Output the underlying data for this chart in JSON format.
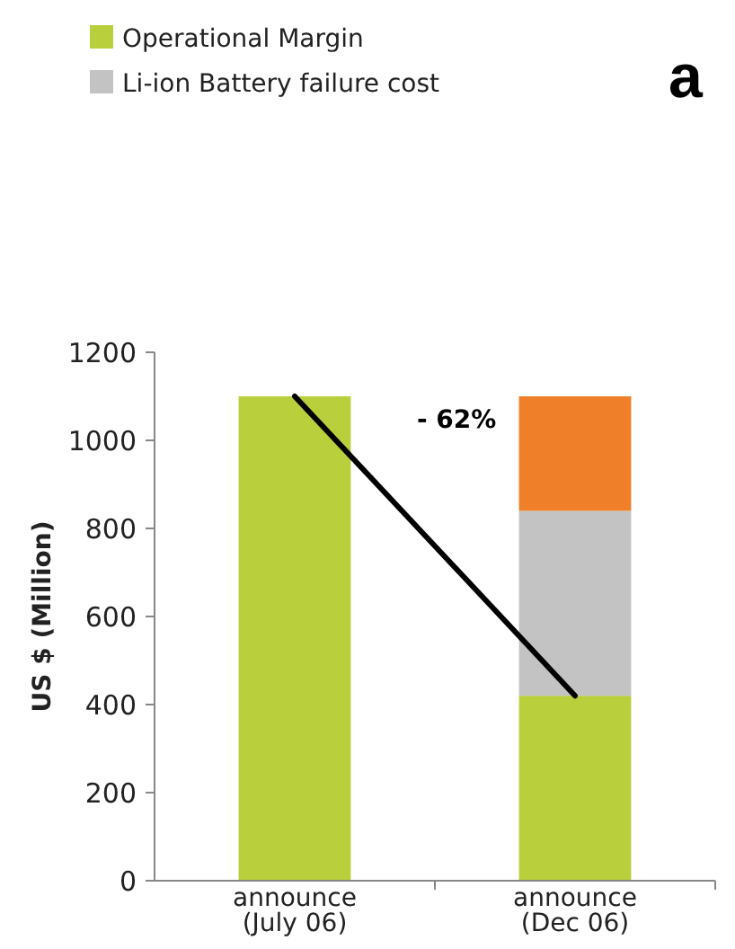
{
  "chart_data": {
    "type": "bar",
    "stacked": true,
    "categories": [
      "announce (July 06)",
      "announce (Dec 06)"
    ],
    "series": [
      {
        "name": "Operational Margin",
        "color": "#b9cf3c",
        "values": [
          1100,
          420
        ]
      },
      {
        "name": "Li-ion Battery failure cost",
        "color": "#c3c3c3",
        "values": [
          0,
          420
        ]
      },
      {
        "color": "#f07f2a",
        "values": [
          0,
          260
        ]
      },
      {
        "type": "line",
        "color": "#000000",
        "values": [
          1100,
          420
        ]
      }
    ],
    "ylabel": "US $ (Million)",
    "ylim": [
      0,
      1200
    ],
    "yticks": [
      0,
      200,
      400,
      600,
      800,
      1000,
      1200
    ],
    "legend": "top left",
    "annotations": [
      "- 62%",
      "a"
    ]
  }
}
